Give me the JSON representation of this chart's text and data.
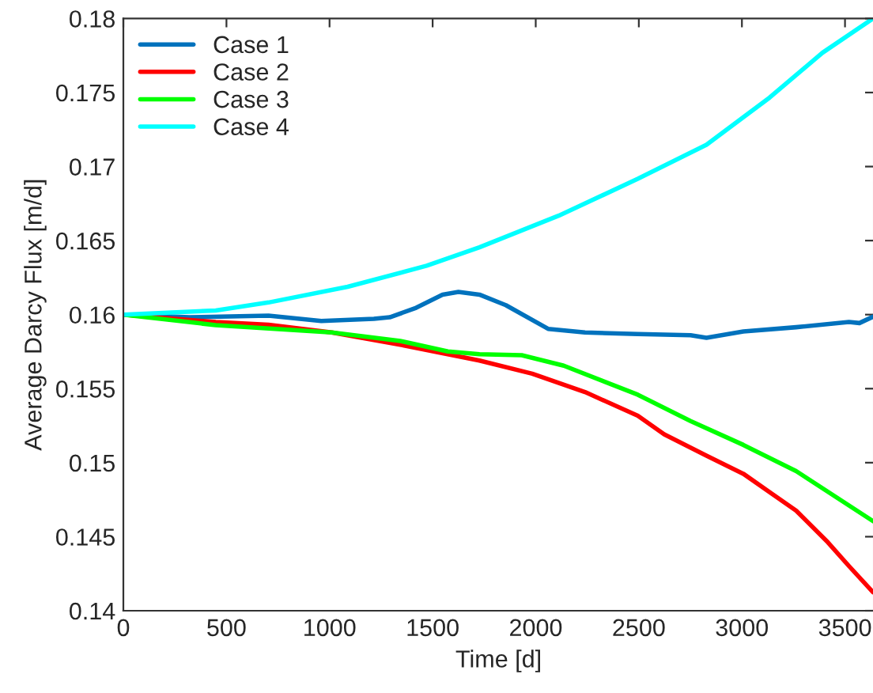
{
  "chart_data": {
    "type": "line",
    "xlabel": "Time [d]",
    "ylabel": "Average Darcy Flux [m/d]",
    "xlim": [
      0,
      3640
    ],
    "ylim": [
      0.14,
      0.18
    ],
    "xticks": [
      0,
      500,
      1000,
      1500,
      2000,
      2500,
      3000,
      3500
    ],
    "yticks": [
      0.14,
      0.145,
      0.15,
      0.155,
      0.16,
      0.165,
      0.17,
      0.175,
      0.18
    ],
    "grid": false,
    "legend": "top left",
    "line_style": "solid",
    "marker": "none",
    "series": [
      {
        "name": "Case 1",
        "color": "#0072bd",
        "x": [
          0,
          320,
          704,
          960,
          1215,
          1292,
          1420,
          1548,
          1625,
          1727,
          1855,
          2060,
          2239,
          2495,
          2751,
          2828,
          3007,
          3263,
          3519,
          3570,
          3636
        ],
        "values": [
          0.16,
          0.15982,
          0.15993,
          0.15957,
          0.15972,
          0.15982,
          0.16046,
          0.16135,
          0.16153,
          0.16135,
          0.16064,
          0.15904,
          0.15879,
          0.15869,
          0.15861,
          0.15844,
          0.15886,
          0.15915,
          0.1595,
          0.15943,
          0.15986
        ]
      },
      {
        "name": "Case 2",
        "color": "#ff0000",
        "x": [
          0,
          448,
          704,
          1011,
          1343,
          1727,
          1983,
          2239,
          2495,
          2623,
          2828,
          3007,
          3135,
          3263,
          3417,
          3519,
          3636
        ],
        "values": [
          0.16,
          0.1595,
          0.15932,
          0.15879,
          0.15797,
          0.1569,
          0.15601,
          0.15477,
          0.15317,
          0.15192,
          0.15047,
          0.14925,
          0.148,
          0.14676,
          0.14462,
          0.14302,
          0.14125
        ]
      },
      {
        "name": "Case 3",
        "color": "#00ff00",
        "x": [
          0,
          448,
          1011,
          1343,
          1574,
          1727,
          1932,
          2136,
          2495,
          2751,
          3007,
          3263,
          3636
        ],
        "values": [
          0.16,
          0.15929,
          0.15879,
          0.15822,
          0.15751,
          0.15733,
          0.15726,
          0.15655,
          0.15459,
          0.15281,
          0.1512,
          0.14943,
          0.14605
        ]
      },
      {
        "name": "Case 4",
        "color": "#00ffff",
        "x": [
          0,
          448,
          704,
          1088,
          1471,
          1727,
          2111,
          2495,
          2828,
          3135,
          3391,
          3636
        ],
        "values": [
          0.16,
          0.16028,
          0.16082,
          0.16188,
          0.1633,
          0.16455,
          0.16668,
          0.16917,
          0.17147,
          0.17467,
          0.17769,
          0.18
        ]
      }
    ]
  }
}
